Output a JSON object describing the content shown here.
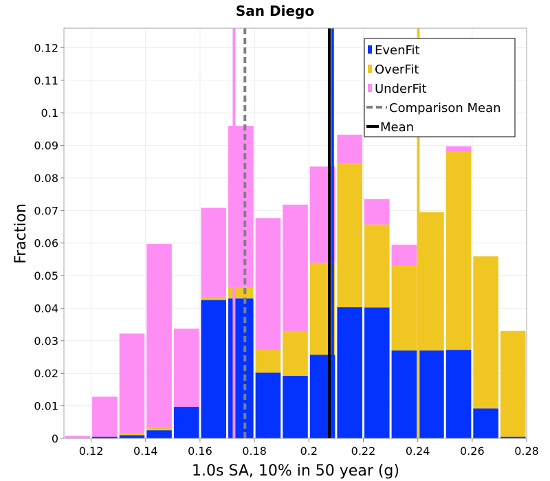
{
  "chart_data": {
    "type": "bar",
    "stacked": true,
    "title": "San Diego",
    "xlabel": "1.0s SA, 10% in 50 year (g)",
    "ylabel": "Fraction",
    "xlim": [
      0.11,
      0.28
    ],
    "ylim": [
      0,
      0.126
    ],
    "bin_width": 0.01,
    "bin_centers": [
      0.115,
      0.125,
      0.135,
      0.145,
      0.155,
      0.165,
      0.175,
      0.185,
      0.195,
      0.205,
      0.215,
      0.225,
      0.235,
      0.245,
      0.255,
      0.265,
      0.275
    ],
    "series": [
      {
        "name": "EvenFit",
        "color": "#0433ff",
        "values": [
          0.0,
          0.0005,
          0.001,
          0.0025,
          0.0097,
          0.0425,
          0.043,
          0.0202,
          0.0192,
          0.0257,
          0.0403,
          0.0402,
          0.027,
          0.027,
          0.0272,
          0.0092,
          0.0005
        ]
      },
      {
        "name": "OverFit",
        "color": "#f0c623",
        "values": [
          0.0,
          0.0,
          0.0005,
          0.001,
          0.0,
          0.001,
          0.0035,
          0.007,
          0.0138,
          0.0282,
          0.0442,
          0.0255,
          0.026,
          0.0425,
          0.061,
          0.0467,
          0.0325
        ]
      },
      {
        "name": "UnderFit",
        "color": "#ff8ef4",
        "values": [
          0.0008,
          0.0123,
          0.0307,
          0.0562,
          0.024,
          0.0273,
          0.0495,
          0.0405,
          0.0388,
          0.0296,
          0.0088,
          0.0078,
          0.0065,
          0.0,
          0.0015,
          0.0,
          0.0
        ]
      }
    ],
    "vertical_lines": [
      {
        "name": "UnderFit mean",
        "x": 0.1725,
        "color": "#ff8ef4",
        "style": "solid"
      },
      {
        "name": "EvenFit mean",
        "x": 0.2087,
        "color": "#0433ff",
        "style": "solid"
      },
      {
        "name": "OverFit mean",
        "x": 0.2402,
        "color": "#f0c623",
        "style": "solid"
      },
      {
        "name": "Comparison Mean",
        "x": 0.1765,
        "color": "#808080",
        "style": "dashed"
      },
      {
        "name": "Mean",
        "x": 0.2075,
        "color": "#000000",
        "style": "solid"
      }
    ],
    "x_ticks": [
      0.12,
      0.14,
      0.16,
      0.18,
      0.2,
      0.22,
      0.24,
      0.26,
      0.28
    ],
    "x_tick_labels": [
      "0.12",
      "0.14",
      "0.16",
      "0.18",
      "0.2",
      "0.22",
      "0.24",
      "0.26",
      "0.28"
    ],
    "y_ticks": [
      0,
      0.01,
      0.02,
      0.03,
      0.04,
      0.05,
      0.06,
      0.07,
      0.08,
      0.09,
      0.1,
      0.11,
      0.12
    ],
    "y_tick_labels": [
      "0",
      "0.01",
      "0.02",
      "0.03",
      "0.04",
      "0.05",
      "0.06",
      "0.07",
      "0.08",
      "0.09",
      "0.1",
      "0.11",
      "0.12"
    ],
    "grid": true,
    "legend": {
      "placement": "top-right",
      "entries": [
        {
          "label": "EvenFit",
          "color": "#0433ff",
          "kind": "box"
        },
        {
          "label": "OverFit",
          "color": "#f0c623",
          "kind": "box"
        },
        {
          "label": "UnderFit",
          "color": "#ff8ef4",
          "kind": "box"
        },
        {
          "label": "Comparison Mean",
          "color": "#808080",
          "kind": "dashed"
        },
        {
          "label": "Mean",
          "color": "#000000",
          "kind": "line"
        }
      ]
    }
  }
}
